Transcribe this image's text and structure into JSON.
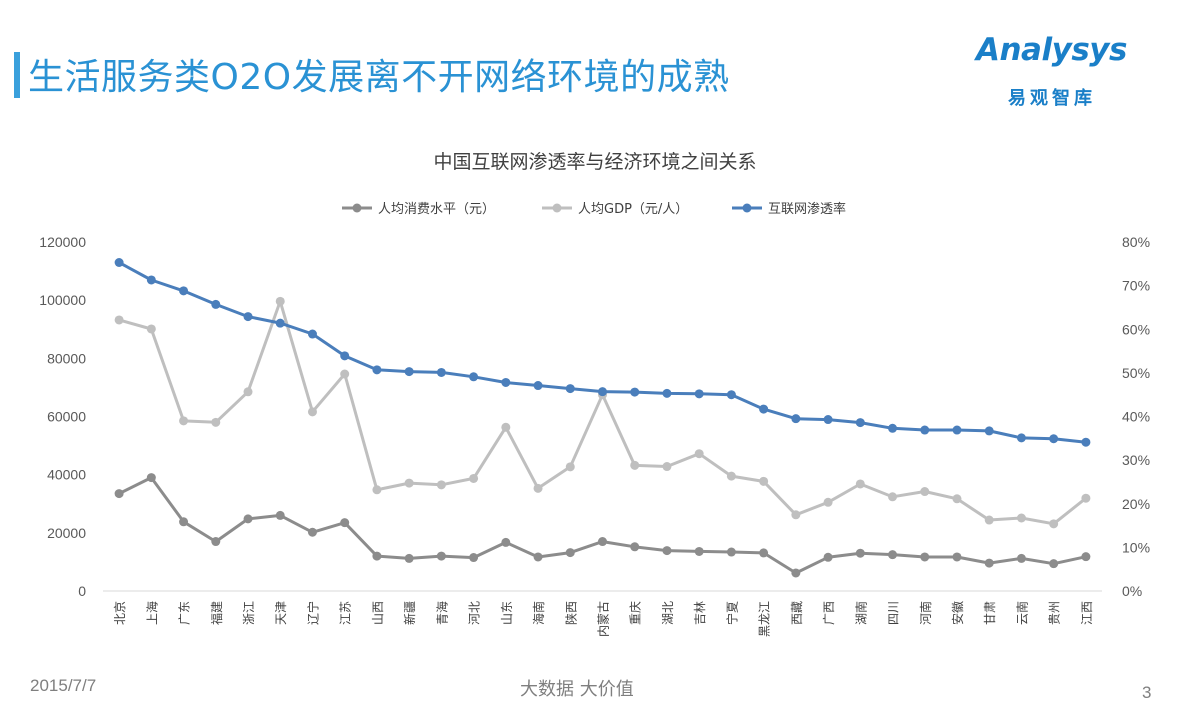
{
  "page": {
    "title": "生活服务类O2O发展离不开网络环境的成熟",
    "logo_word": "Analysys",
    "logo_cn": "易观智库",
    "footer_date": "2015/7/7",
    "footer_center": "大数据    大价值",
    "page_number": "3"
  },
  "colors": {
    "accent": "#3aa0dc",
    "series_consumption": "#8c8c8c",
    "series_gdp": "#bfbfbf",
    "series_internet": "#4a7ebb"
  },
  "chart_data": {
    "type": "line",
    "title": "中国互联网渗透率与经济环境之间关系",
    "legend_position": "top",
    "grid": false,
    "categories": [
      "北京",
      "上海",
      "广东",
      "福建",
      "浙江",
      "天津",
      "辽宁",
      "江苏",
      "山西",
      "新疆",
      "青海",
      "河北",
      "山东",
      "海南",
      "陕西",
      "内蒙古",
      "重庆",
      "湖北",
      "吉林",
      "宁夏",
      "黑龙江",
      "西藏",
      "广西",
      "湖南",
      "四川",
      "河南",
      "安徽",
      "甘肃",
      "云南",
      "贵州",
      "江西"
    ],
    "y_left": {
      "min": 0,
      "max": 120000,
      "ticks": [
        "0",
        "20000",
        "40000",
        "60000",
        "80000",
        "100000",
        "120000"
      ]
    },
    "y_right": {
      "min": 0,
      "max": 0.8,
      "ticks": [
        "0%",
        "10%",
        "20%",
        "30%",
        "40%",
        "50%",
        "60%",
        "70%",
        "80%"
      ]
    },
    "series": [
      {
        "name": "人均消费水平（元）",
        "axis": "left",
        "values": [
          33500,
          39000,
          23800,
          17000,
          24800,
          26000,
          20200,
          23500,
          12000,
          11200,
          12000,
          11500,
          16700,
          11700,
          13200,
          17000,
          15200,
          13900,
          13600,
          13400,
          13100,
          6200,
          11600,
          13000,
          12500,
          11700,
          11700,
          9600,
          11200,
          9400,
          11800
        ]
      },
      {
        "name": "人均GDP（元/人）",
        "axis": "left",
        "values": [
          93200,
          90100,
          58500,
          58000,
          68500,
          99600,
          61600,
          74600,
          34800,
          37100,
          36500,
          38700,
          56300,
          35300,
          42700,
          67500,
          43200,
          42800,
          47200,
          39500,
          37700,
          26200,
          30500,
          36800,
          32400,
          34200,
          31700,
          24400,
          25100,
          23100,
          31900
        ]
      },
      {
        "name": "互联网渗透率",
        "axis": "right",
        "values": [
          0.753,
          0.713,
          0.688,
          0.657,
          0.629,
          0.614,
          0.589,
          0.539,
          0.507,
          0.503,
          0.501,
          0.491,
          0.478,
          0.471,
          0.464,
          0.457,
          0.456,
          0.453,
          0.452,
          0.45,
          0.417,
          0.395,
          0.393,
          0.386,
          0.373,
          0.369,
          0.369,
          0.367,
          0.351,
          0.349,
          0.341
        ]
      }
    ]
  }
}
